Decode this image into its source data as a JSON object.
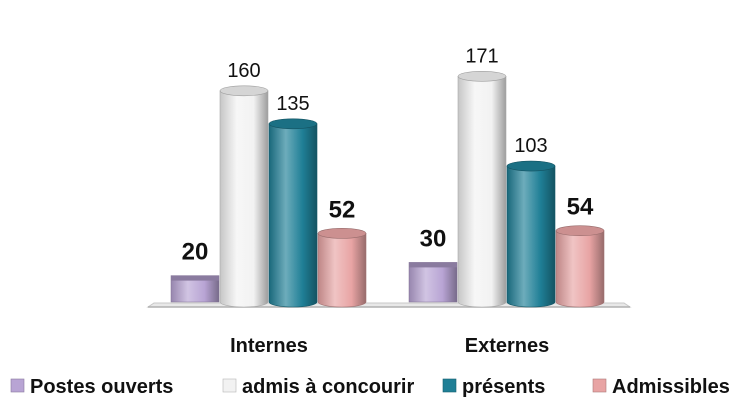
{
  "chart_data": {
    "type": "bar",
    "style": "3d-cylinder",
    "categories": [
      "Internes",
      "Externes"
    ],
    "series": [
      {
        "name": "Postes ouverts",
        "values": [
          20,
          30
        ],
        "color": "#b8a4d4",
        "label_bold": true
      },
      {
        "name": "admis à concourir",
        "values": [
          160,
          171
        ],
        "color": "#f2f2f2",
        "label_bold": false
      },
      {
        "name": "présents",
        "values": [
          135,
          103
        ],
        "color": "#1f7f96",
        "label_bold": false
      },
      {
        "name": "Admissibles",
        "values": [
          52,
          54
        ],
        "color": "#e8a4a4",
        "label_bold": true
      }
    ],
    "title": "",
    "xlabel": "",
    "ylabel": "",
    "ylim": [
      0,
      180
    ],
    "grid": false,
    "legend": "bottom"
  }
}
